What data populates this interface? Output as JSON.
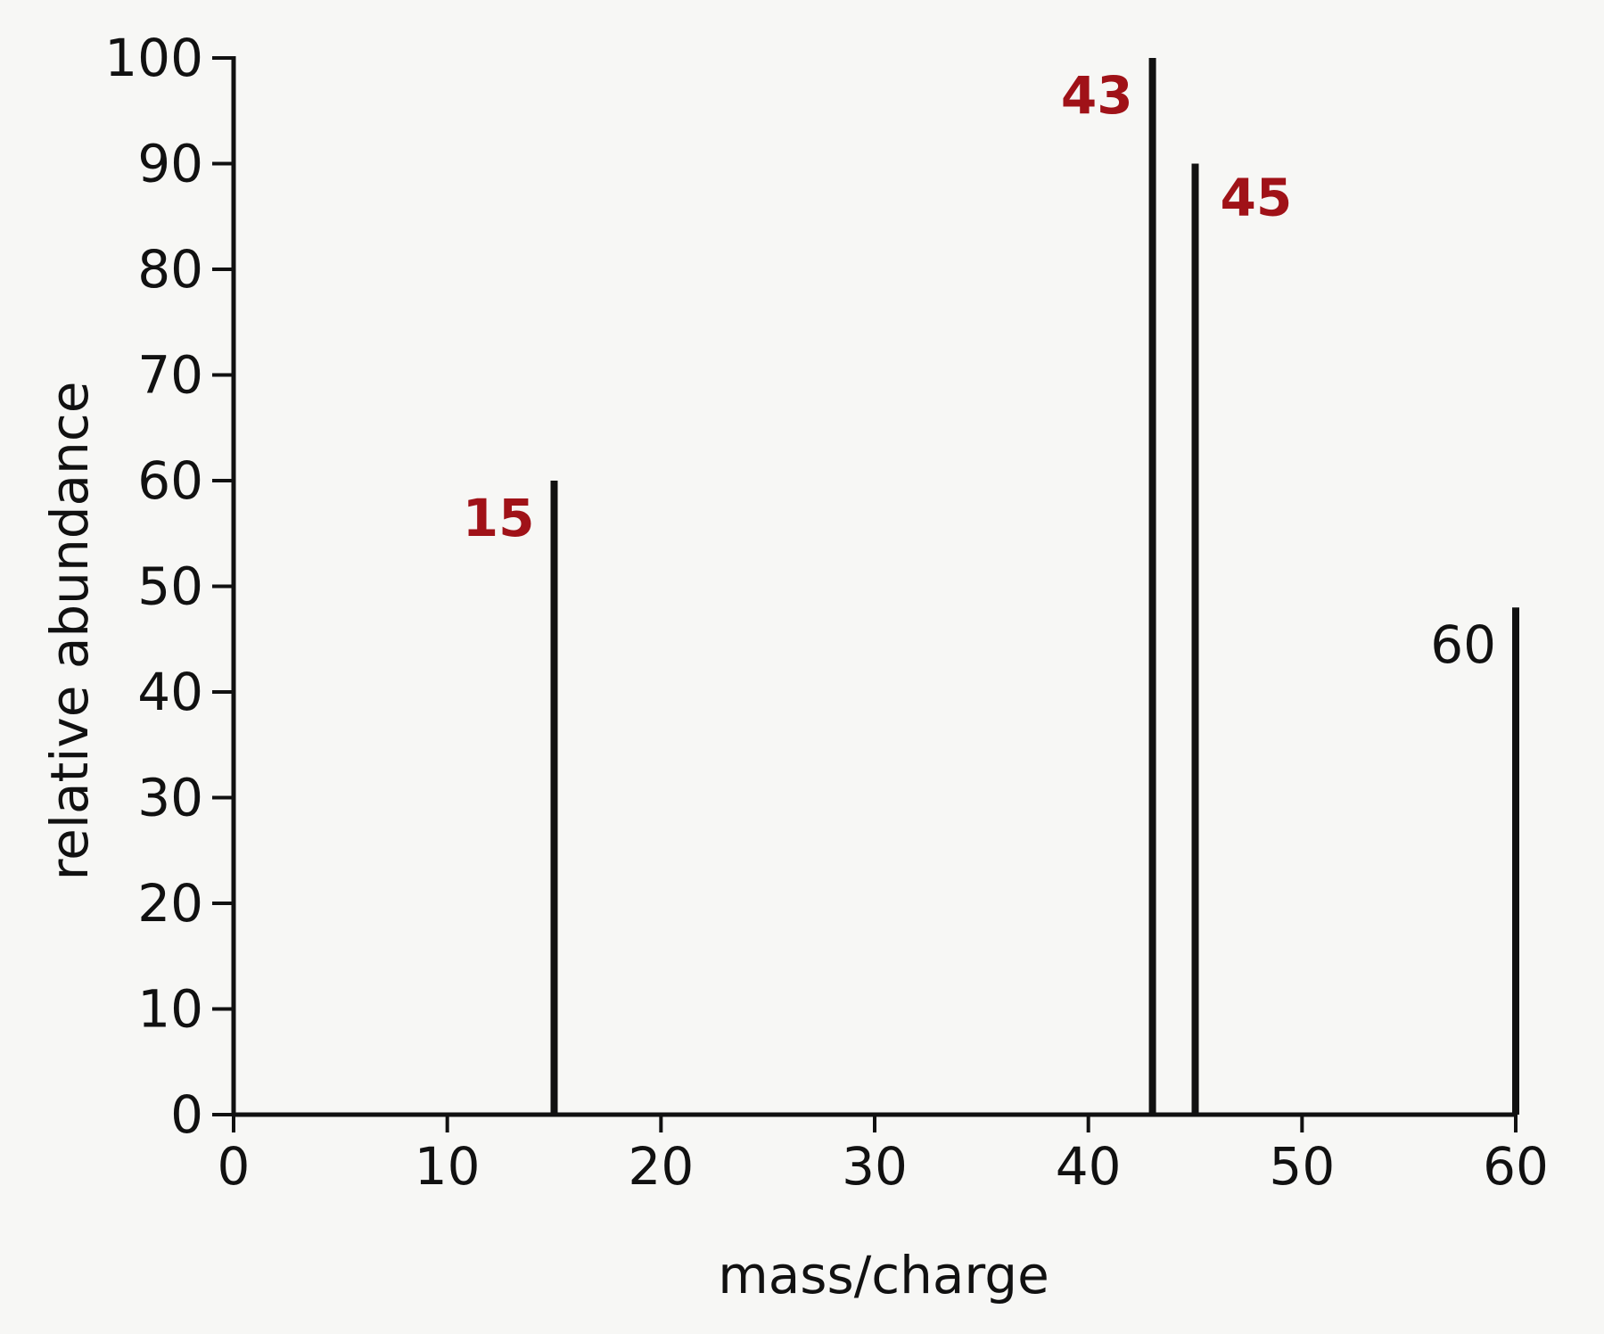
{
  "chart_data": {
    "type": "bar",
    "xlabel": "mass/charge",
    "ylabel": "relative abundance",
    "xlim": [
      0,
      60
    ],
    "ylim": [
      0,
      100
    ],
    "xticks": [
      0,
      10,
      20,
      30,
      40,
      50,
      60
    ],
    "yticks": [
      0,
      10,
      20,
      30,
      40,
      50,
      60,
      70,
      80,
      90,
      100
    ],
    "grid": false,
    "peaks": [
      {
        "x": 15,
        "y": 60,
        "label": "15",
        "label_color": "#a01218"
      },
      {
        "x": 43,
        "y": 100,
        "label": "43",
        "label_color": "#a01218"
      },
      {
        "x": 45,
        "y": 90,
        "label": "45",
        "label_color": "#a01218"
      },
      {
        "x": 60,
        "y": 48,
        "label": "60",
        "label_color": "#111111"
      }
    ]
  },
  "colors": {
    "axis": "#111111",
    "peak": "#111111",
    "highlight_label": "#a01218",
    "background": "#f7f7f5"
  }
}
